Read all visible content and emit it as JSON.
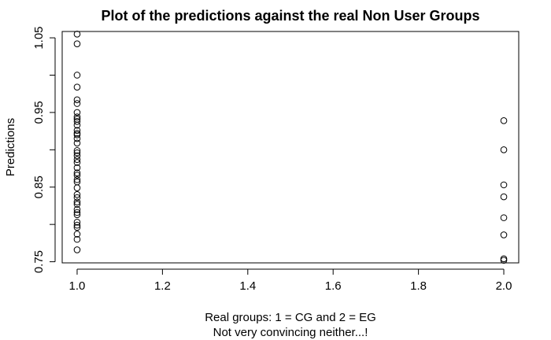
{
  "chart_data": {
    "type": "scatter",
    "title": "Plot of the predictions against the real Non User Groups",
    "xlabel": "Real groups: 1 = CG and 2 = EG",
    "xlabel_line2": "Not very convincing neither...!",
    "ylabel": "Predictions",
    "xlim": [
      0.965,
      2.035
    ],
    "ylim": [
      0.7485,
      1.0585
    ],
    "xticks": [
      "1.0",
      "1.2",
      "1.4",
      "1.6",
      "1.8",
      "2.0"
    ],
    "yticks": [
      "0.75",
      "0.85",
      "0.95",
      "1.05"
    ],
    "grid": false,
    "marker": "open-circle",
    "points": [
      {
        "x": 1,
        "y": 1.055
      },
      {
        "x": 1,
        "y": 1.042
      },
      {
        "x": 1,
        "y": 1.0
      },
      {
        "x": 1,
        "y": 0.984
      },
      {
        "x": 1,
        "y": 0.967
      },
      {
        "x": 1,
        "y": 0.962
      },
      {
        "x": 1,
        "y": 0.95
      },
      {
        "x": 1,
        "y": 0.944
      },
      {
        "x": 1,
        "y": 0.941
      },
      {
        "x": 1,
        "y": 0.938
      },
      {
        "x": 1,
        "y": 0.933
      },
      {
        "x": 1,
        "y": 0.926
      },
      {
        "x": 1,
        "y": 0.922
      },
      {
        "x": 1,
        "y": 0.92
      },
      {
        "x": 1,
        "y": 0.915
      },
      {
        "x": 1,
        "y": 0.909
      },
      {
        "x": 1,
        "y": 0.899
      },
      {
        "x": 1,
        "y": 0.896
      },
      {
        "x": 1,
        "y": 0.892
      },
      {
        "x": 1,
        "y": 0.887
      },
      {
        "x": 1,
        "y": 0.883
      },
      {
        "x": 1,
        "y": 0.876
      },
      {
        "x": 1,
        "y": 0.869
      },
      {
        "x": 1,
        "y": 0.866
      },
      {
        "x": 1,
        "y": 0.86
      },
      {
        "x": 1,
        "y": 0.857
      },
      {
        "x": 1,
        "y": 0.849
      },
      {
        "x": 1,
        "y": 0.84
      },
      {
        "x": 1,
        "y": 0.836
      },
      {
        "x": 1,
        "y": 0.83
      },
      {
        "x": 1,
        "y": 0.827
      },
      {
        "x": 1,
        "y": 0.82
      },
      {
        "x": 1,
        "y": 0.816
      },
      {
        "x": 1,
        "y": 0.813
      },
      {
        "x": 1,
        "y": 0.803
      },
      {
        "x": 1,
        "y": 0.799
      },
      {
        "x": 1,
        "y": 0.796
      },
      {
        "x": 1,
        "y": 0.787
      },
      {
        "x": 1,
        "y": 0.78
      },
      {
        "x": 1,
        "y": 0.766
      },
      {
        "x": 2,
        "y": 0.939
      },
      {
        "x": 2,
        "y": 0.9
      },
      {
        "x": 2,
        "y": 0.853
      },
      {
        "x": 2,
        "y": 0.837
      },
      {
        "x": 2,
        "y": 0.809
      },
      {
        "x": 2,
        "y": 0.786
      },
      {
        "x": 2,
        "y": 0.754
      },
      {
        "x": 2,
        "y": 0.752
      }
    ]
  }
}
